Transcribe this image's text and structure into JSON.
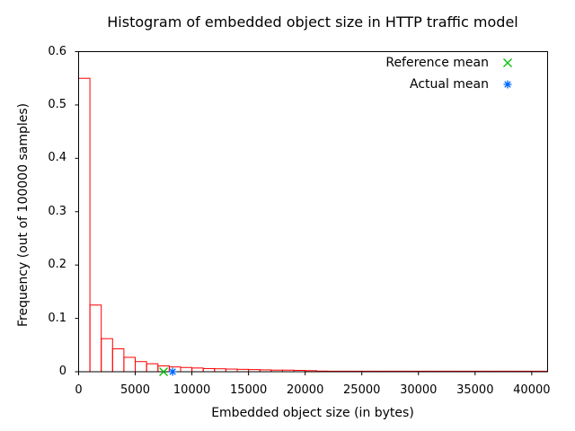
{
  "chart_data": {
    "type": "bar",
    "title": "Histogram of embedded object size in HTTP traffic model",
    "xlabel": "Embedded object size (in bytes)",
    "ylabel": "Frequency (out of 100000 samples)",
    "xlim": [
      0,
      41400
    ],
    "ylim": [
      0,
      0.6
    ],
    "grid": false,
    "legend_position": "top-right-inside",
    "background_color": "#ffffff",
    "axis_color": "#000000",
    "bar_color": "#ff0000",
    "bin_start": 0,
    "bin_width": 1000,
    "values": [
      0.55,
      0.125,
      0.062,
      0.043,
      0.027,
      0.019,
      0.015,
      0.011,
      0.009,
      0.008,
      0.007,
      0.006,
      0.0055,
      0.005,
      0.0045,
      0.004,
      0.0035,
      0.003,
      0.003,
      0.0025,
      0.002,
      0.0012,
      0.001,
      0.001,
      0.001,
      0.001,
      0.001,
      0.001,
      0.001,
      0.001,
      0.001,
      0.001,
      0.001,
      0.001,
      0.001,
      0.001,
      0.001,
      0.001,
      0.001,
      0.001,
      0.001,
      0.001
    ],
    "xticks": [
      {
        "v": 0,
        "label": "0"
      },
      {
        "v": 5000,
        "label": "5000"
      },
      {
        "v": 10000,
        "label": "10000"
      },
      {
        "v": 15000,
        "label": "15000"
      },
      {
        "v": 20000,
        "label": "20000"
      },
      {
        "v": 25000,
        "label": "25000"
      },
      {
        "v": 30000,
        "label": "30000"
      },
      {
        "v": 35000,
        "label": "35000"
      },
      {
        "v": 40000,
        "label": "40000"
      }
    ],
    "yticks": [
      {
        "v": 0,
        "label": "0"
      },
      {
        "v": 0.1,
        "label": "0.1"
      },
      {
        "v": 0.2,
        "label": "0.2"
      },
      {
        "v": 0.3,
        "label": "0.3"
      },
      {
        "v": 0.4,
        "label": "0.4"
      },
      {
        "v": 0.5,
        "label": "0.5"
      },
      {
        "v": 0.6,
        "label": "0.6"
      }
    ],
    "markers": [
      {
        "label": "Reference mean",
        "x": 7500,
        "y": 0,
        "shape": "cross",
        "color": "#00c000"
      },
      {
        "label": "Actual mean",
        "x": 8300,
        "y": 0,
        "shape": "asterisk",
        "color": "#0066ff"
      }
    ]
  }
}
